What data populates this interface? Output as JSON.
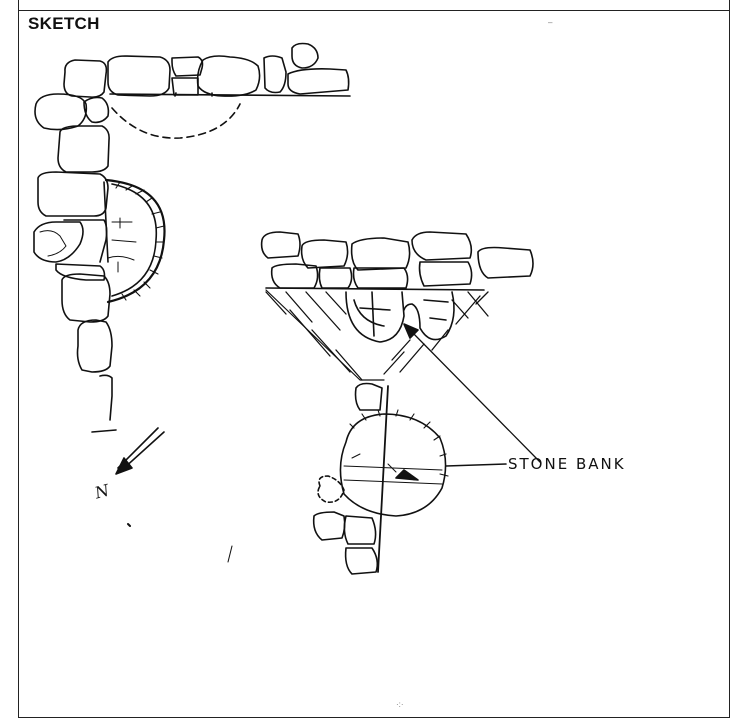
{
  "header": {
    "title": "SKETCH"
  },
  "annotations": {
    "stone_bank": "STONE BANK",
    "north": "N"
  },
  "colors": {
    "ink": "#111111",
    "paper": "#ffffff"
  }
}
